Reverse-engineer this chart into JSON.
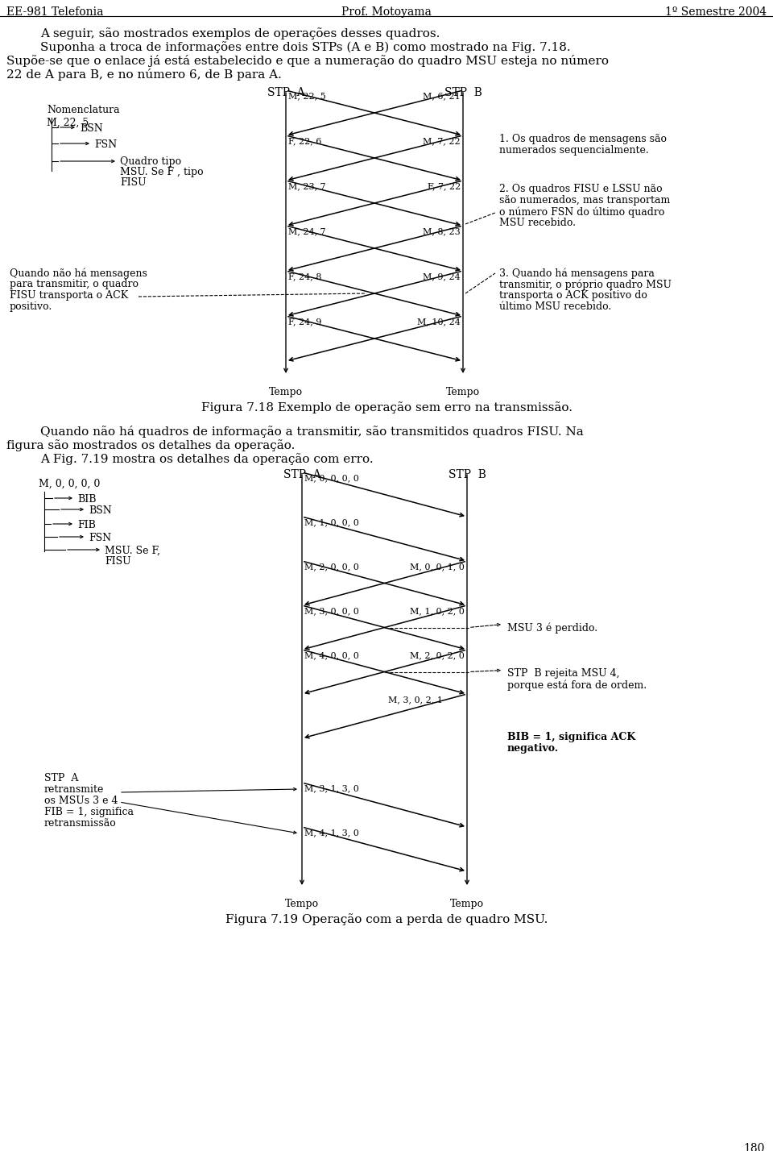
{
  "header_left": "EE-981 Telefonia",
  "header_center": "Prof. Motoyama",
  "header_right": "1º Semestre 2004",
  "page_number": "180",
  "para1": "A seguir, são mostrados exemplos de operações desses quadros.",
  "para2": "Suponha a troca de informações entre dois STPs (A e B) como mostrado na Fig. 7.18.",
  "para3": "Supõe-se que o enlace já está estabelecido e que a numeração do quadro MSU esteja no número",
  "para4": "22 de A para B, e no número 6, de B para A.",
  "fig1_caption": "Figura 7.18 Exemplo de operação sem erro na transmissão.",
  "nomenclatura_label": "Nomenclatura",
  "nomenclatura_m": "M, 22, 5",
  "nomenclatura_bsn": "BSN",
  "nomenclatura_fsn": "FSN",
  "nomenclatura_quadro": "Quadro tipo",
  "nomenclatura_msu": "MSU. Se F , tipo",
  "nomenclatura_fisu_type": "FISU",
  "nomenclatura_quando": "Quando não há mensagens",
  "nomenclatura_para": "para transmitir, o quadro",
  "nomenclatura_fisu2": "FISU transporta o ACK",
  "nomenclatura_positivo": "positivo.",
  "note1a": "1. Os quadros de mensagens são",
  "note1b": "numerados sequencialmente.",
  "note2a": "2. Os quadros FISU e LSSU não",
  "note2b": "são numerados, mas transportam",
  "note2c": "o número FSN do último quadro",
  "note2d": "MSU recebido.",
  "note3a": "3. Quando há mensagens para",
  "note3b": "transmitir, o próprio quadro MSU",
  "note3c": "transporta o ACK positivo do",
  "note3d": "último MSU recebido.",
  "para5": "Quando não há quadros de informação a transmitir, são transmitidos quadros FISU. Na",
  "para6": "figura são mostrados os detalhes da operação.",
  "para7": "A Fig. 7.19 mostra os detalhes da operação com erro.",
  "fig2_caption": "Figura 7.19 Operação com a perda de quadro MSU.",
  "fig2_label": "M, 0, 0, 0, 0",
  "fig2_bib": "BIB",
  "fig2_bsn": "BSN",
  "fig2_fib": "FIB",
  "fig2_fsn": "FSN",
  "fig2_msu": "MSU. Se F,",
  "fig2_fisu": "FISU",
  "fig2_retrans_title": "STP  A",
  "fig2_retrans1": "retransmite",
  "fig2_retrans2": "os MSUs 3 e 4",
  "fig2_retrans3": "FIB = 1, significa",
  "fig2_retrans4": "retransmissão",
  "fig2_msu3_perdido": "MSU 3 é perdido.",
  "fig2_stpb_rejeita1": "STP  B rejeita MSU 4,",
  "fig2_stpb_rejeita2": "porque está fora de ordem.",
  "fig2_bib1": "BIB = 1, significa ACK",
  "fig2_bib2": "negativo."
}
